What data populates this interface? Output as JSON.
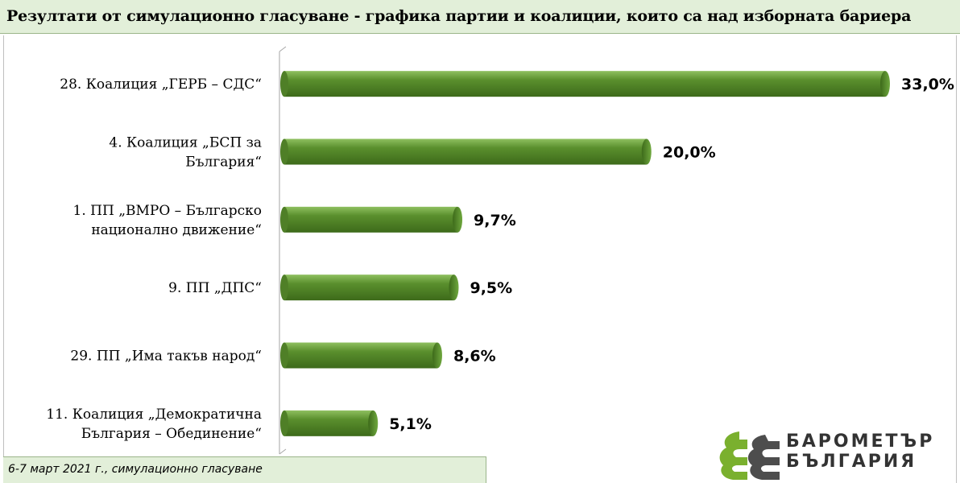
{
  "header": {
    "title": "Резултати от симулационно гласуване - графика партии и коалиции, които  са над изборната бариера"
  },
  "footer": {
    "caption": "6-7 март 2021 г., симулационно гласуване"
  },
  "logo": {
    "line1": "БАРОМЕТЪР",
    "line2": "БЪЛГАРИЯ"
  },
  "colors": {
    "bar": "#5a8f2d",
    "bar_dark": "#3d6a1a",
    "bar_light": "#8fc060",
    "header_bg": "#e2efd9",
    "logo_green": "#7ab02e",
    "logo_gray": "#4d4d4d"
  },
  "chart_data": {
    "type": "bar",
    "orientation": "horizontal",
    "title": "Резултати от симулационно гласуване - графика партии и коалиции, които  са над изборната бариера",
    "categories": [
      "28. Коалиция „ГЕРБ – СДС“",
      "4. Коалиция „БСП за България“",
      "1. ПП „ВМРО – Българско национално движение“",
      "9. ПП „ДПС“",
      "29. ПП „Има такъв народ“",
      "11. Коалиция „Демократична България – Обединение“"
    ],
    "category_lines": [
      [
        "28. Коалиция „ГЕРБ – СДС“"
      ],
      [
        "4. Коалиция „БСП за",
        "България“"
      ],
      [
        "1. ПП „ВМРО – Българско",
        "национално движение“"
      ],
      [
        "9. ПП „ДПС“"
      ],
      [
        "29. ПП „Има такъв народ“"
      ],
      [
        "11. Коалиция „Демократична",
        "България – Обединение“"
      ]
    ],
    "values": [
      33.0,
      20.0,
      9.7,
      9.5,
      8.6,
      5.1
    ],
    "value_labels": [
      "33,0%",
      "20,0%",
      "9,7%",
      "9,5%",
      "8,6%",
      "5,1%"
    ],
    "xlim": [
      0,
      33.0
    ],
    "unit": "%",
    "grid": false,
    "legend": "none"
  }
}
